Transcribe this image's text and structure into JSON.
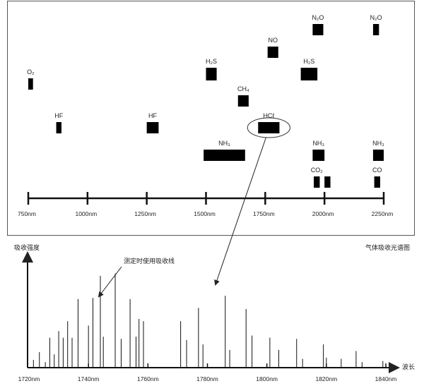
{
  "top_chart": {
    "caption": "气体吸收光谱图",
    "x_unit": "nm",
    "x_ticks": [
      "750nm",
      "1000nm",
      "1250nm",
      "1500nm",
      "1750nm",
      "2000nm",
      "2250nm"
    ],
    "x_tick_values": [
      750,
      1000,
      1250,
      1500,
      1750,
      2000,
      2250
    ],
    "bands": [
      {
        "gas": "O₂",
        "label": "O₂",
        "start": 750,
        "end": 770,
        "row": 4
      },
      {
        "gas": "HF",
        "label": "HF",
        "start": 868,
        "end": 890,
        "row": 2
      },
      {
        "gas": "HF",
        "label": "HF",
        "start": 1250,
        "end": 1300,
        "row": 2
      },
      {
        "gas": "H₂S",
        "label": "H₂S",
        "start": 1500,
        "end": 1545,
        "row": 5
      },
      {
        "gas": "NH₃",
        "label": "NH₃",
        "start": 1490,
        "end": 1665,
        "row": 0
      },
      {
        "gas": "CH₄",
        "label": "CH₄",
        "start": 1635,
        "end": 1680,
        "row": 3
      },
      {
        "gas": "NO",
        "label": "NO",
        "start": 1760,
        "end": 1805,
        "row": 6
      },
      {
        "gas": "HCℓ",
        "label": "HCℓ",
        "start": 1720,
        "end": 1810,
        "row": 2,
        "highlighted": true
      },
      {
        "gas": "H₂S",
        "label": "H₂S",
        "start": 1900,
        "end": 1970,
        "row": 5
      },
      {
        "gas": "N₂O",
        "label": "N₂O",
        "start": 1950,
        "end": 1995,
        "row": 7
      },
      {
        "gas": "N₂O",
        "label": "N₂O",
        "start": 2205,
        "end": 2230,
        "row": 7
      },
      {
        "gas": "NH₃",
        "label": "NH₃",
        "start": 1950,
        "end": 2000,
        "row": 0
      },
      {
        "gas": "NH₃",
        "label": "NH₃",
        "start": 2205,
        "end": 2250,
        "row": 0
      },
      {
        "gas": "CO₂",
        "label": "CO₂",
        "start": 1955,
        "end": 1980,
        "row": -1
      },
      {
        "gas": "CO₂",
        "label": "",
        "start": 2000,
        "end": 2025,
        "row": -1
      },
      {
        "gas": "CO",
        "label": "CO",
        "start": 2210,
        "end": 2235,
        "row": -1
      }
    ]
  },
  "bottom_chart": {
    "ylabel": "吸收强度",
    "xlabel": "波长",
    "annotation": "测定时使用吸收线",
    "annotation_target": 1744,
    "x_ticks": [
      "1720nm",
      "1740nm",
      "1760nm",
      "1780nm",
      "1800nm",
      "1820nm",
      "1840nm"
    ],
    "x_tick_values": [
      1720,
      1740,
      1760,
      1780,
      1800,
      1820,
      1840
    ],
    "xlim": [
      1720,
      1840
    ],
    "ylim": [
      0,
      1
    ],
    "lines": [
      {
        "x": 1721.5,
        "y": 0.07
      },
      {
        "x": 1723.5,
        "y": 0.14
      },
      {
        "x": 1725.5,
        "y": 0.05
      },
      {
        "x": 1727,
        "y": 0.27
      },
      {
        "x": 1728.5,
        "y": 0.12
      },
      {
        "x": 1730,
        "y": 0.33
      },
      {
        "x": 1731.5,
        "y": 0.27
      },
      {
        "x": 1733,
        "y": 0.42
      },
      {
        "x": 1734.5,
        "y": 0.27
      },
      {
        "x": 1736.5,
        "y": 0.62
      },
      {
        "x": 1740,
        "y": 0.38
      },
      {
        "x": 1741.5,
        "y": 0.63
      },
      {
        "x": 1744,
        "y": 0.83
      },
      {
        "x": 1745,
        "y": 0.28
      },
      {
        "x": 1749,
        "y": 0.85
      },
      {
        "x": 1751,
        "y": 0.26
      },
      {
        "x": 1754,
        "y": 0.62
      },
      {
        "x": 1756,
        "y": 0.28
      },
      {
        "x": 1757,
        "y": 0.44
      },
      {
        "x": 1758.5,
        "y": 0.42
      },
      {
        "x": 1771,
        "y": 0.42
      },
      {
        "x": 1773,
        "y": 0.25
      },
      {
        "x": 1777,
        "y": 0.54
      },
      {
        "x": 1778.5,
        "y": 0.21
      },
      {
        "x": 1786,
        "y": 0.65
      },
      {
        "x": 1787.5,
        "y": 0.16
      },
      {
        "x": 1793,
        "y": 0.53
      },
      {
        "x": 1795,
        "y": 0.29
      },
      {
        "x": 1801,
        "y": 0.27
      },
      {
        "x": 1804,
        "y": 0.16
      },
      {
        "x": 1810,
        "y": 0.26
      },
      {
        "x": 1812,
        "y": 0.08
      },
      {
        "x": 1819,
        "y": 0.21
      },
      {
        "x": 1820,
        "y": 0.09
      },
      {
        "x": 1825,
        "y": 0.08
      },
      {
        "x": 1830,
        "y": 0.15
      },
      {
        "x": 1832,
        "y": 0.05
      },
      {
        "x": 1839,
        "y": 0.06
      }
    ]
  }
}
